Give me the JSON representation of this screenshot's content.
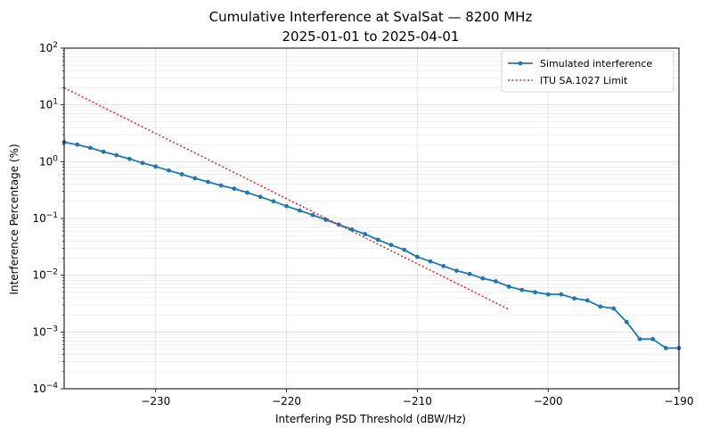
{
  "chart_data": {
    "type": "line",
    "title": "Cumulative Interference at SvalSat — 8200 MHz",
    "subtitle": "2025-01-01 to 2025-04-01",
    "xlabel": "Interfering PSD Threshold (dBW/Hz)",
    "ylabel": "Interference Percentage (%)",
    "xlim": [
      -237,
      -190
    ],
    "ylim": [
      0.0001,
      100
    ],
    "yscale": "log",
    "grid": true,
    "legend_position": "top-right",
    "x_ticks": [
      -230,
      -220,
      -210,
      -200,
      -190
    ],
    "x_tick_labels": [
      "−230",
      "−220",
      "−210",
      "−200",
      "−190"
    ],
    "y_ticks": [
      0.0001,
      0.001,
      0.01,
      0.1,
      1,
      10,
      100
    ],
    "y_tick_labels": [
      {
        "base": "10",
        "exp": "−4"
      },
      {
        "base": "10",
        "exp": "−3"
      },
      {
        "base": "10",
        "exp": "−2"
      },
      {
        "base": "10",
        "exp": "−1"
      },
      {
        "base": "10",
        "exp": "0"
      },
      {
        "base": "10",
        "exp": "1"
      },
      {
        "base": "10",
        "exp": "2"
      }
    ],
    "series": [
      {
        "name": "Simulated interference",
        "color": "#1f77b4",
        "style": "solid-with-markers",
        "x": [
          -237,
          -236,
          -235,
          -234,
          -233,
          -232,
          -231,
          -230,
          -229,
          -228,
          -227,
          -226,
          -225,
          -224,
          -223,
          -222,
          -221,
          -220,
          -219,
          -218,
          -217,
          -216,
          -215,
          -214,
          -213,
          -212,
          -211,
          -210,
          -209,
          -208,
          -207,
          -206,
          -205,
          -204,
          -203,
          -202,
          -201,
          -200,
          -199,
          -198,
          -197,
          -196,
          -195,
          -194,
          -193,
          -192,
          -191,
          -190
        ],
        "y": [
          2.2,
          2.0,
          1.75,
          1.5,
          1.3,
          1.12,
          0.95,
          0.82,
          0.7,
          0.6,
          0.51,
          0.44,
          0.38,
          0.335,
          0.285,
          0.24,
          0.2,
          0.165,
          0.138,
          0.115,
          0.095,
          0.078,
          0.064,
          0.053,
          0.042,
          0.034,
          0.028,
          0.021,
          0.0175,
          0.0145,
          0.012,
          0.0105,
          0.0088,
          0.0078,
          0.0063,
          0.0055,
          0.005,
          0.0046,
          0.0046,
          0.0039,
          0.0036,
          0.0028,
          0.0026,
          0.0015,
          0.00075,
          0.00075,
          0.00052,
          0.00052
        ]
      },
      {
        "name": "ITU SA.1027 Limit",
        "color": "#d62728",
        "style": "dotted",
        "x": [
          -237,
          -203
        ],
        "y": [
          20,
          0.0025
        ]
      }
    ]
  }
}
